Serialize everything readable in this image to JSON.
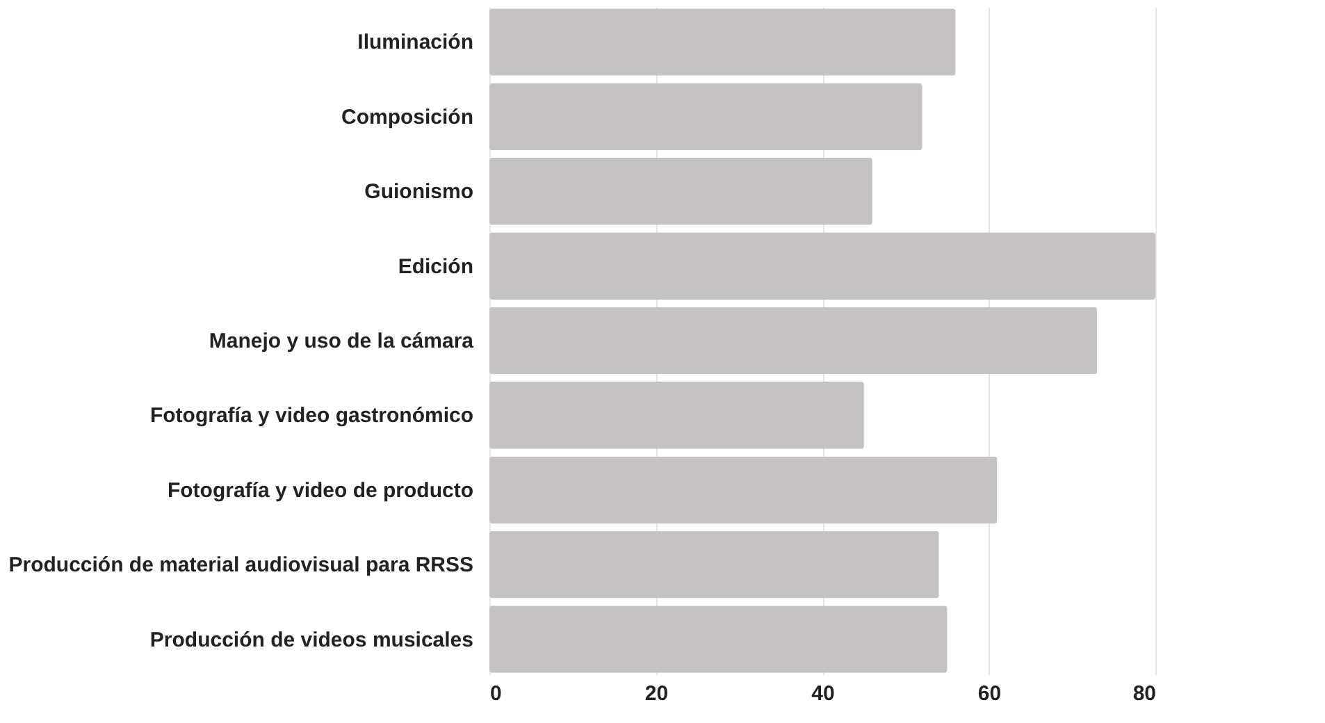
{
  "chart_data": {
    "type": "bar",
    "orientation": "horizontal",
    "categories": [
      "Iluminación",
      "Composición",
      "Guionismo",
      "Edición",
      "Manejo y uso de la cámara",
      "Fotografía y video gastronómico",
      "Fotografía y video de producto",
      "Producción de material audiovisual para RRSS",
      "Producción de videos musicales"
    ],
    "values": [
      56,
      52,
      46,
      80,
      73,
      45,
      61,
      54,
      55
    ],
    "color": "#c4c2c2",
    "xlim": [
      0,
      80
    ],
    "xticks": [
      0,
      20,
      40,
      60,
      80
    ],
    "grid": "x"
  }
}
